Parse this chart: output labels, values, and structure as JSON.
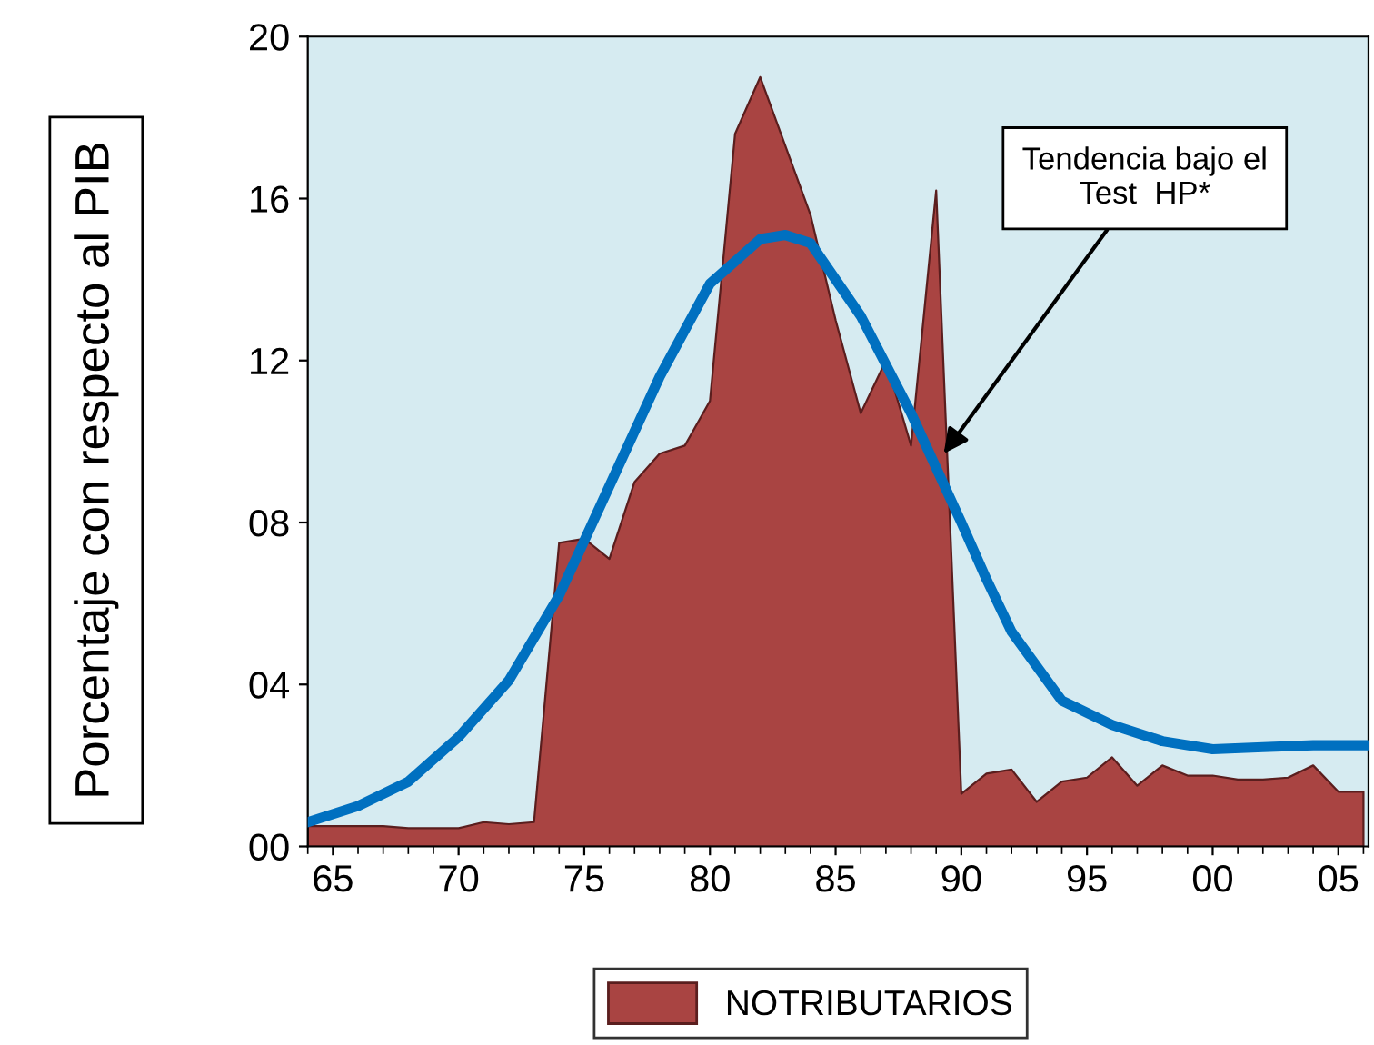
{
  "chart_data": {
    "type": "area",
    "ylabel": "Porcentaje con respecto al PIB",
    "xlim": [
      1964,
      2006.2
    ],
    "ylim": [
      0,
      20
    ],
    "xticks": [
      {
        "value": 1965,
        "label": "65"
      },
      {
        "value": 1970,
        "label": "70"
      },
      {
        "value": 1975,
        "label": "75"
      },
      {
        "value": 1980,
        "label": "80"
      },
      {
        "value": 1985,
        "label": "85"
      },
      {
        "value": 1990,
        "label": "90"
      },
      {
        "value": 1995,
        "label": "95"
      },
      {
        "value": 2000,
        "label": "00"
      },
      {
        "value": 2005,
        "label": "05"
      }
    ],
    "yticks": [
      {
        "value": 0,
        "label": "00"
      },
      {
        "value": 4,
        "label": "04"
      },
      {
        "value": 8,
        "label": "08"
      },
      {
        "value": 12,
        "label": "12"
      },
      16,
      20
    ],
    "series": [
      {
        "name": "NOTRIBUTARIOS",
        "color": "#a94442",
        "x": [
          1964,
          1965,
          1966,
          1967,
          1968,
          1969,
          1970,
          1971,
          1972,
          1973,
          1974,
          1975,
          1976,
          1977,
          1978,
          1979,
          1980,
          1981,
          1982,
          1983,
          1984,
          1985,
          1986,
          1987,
          1988,
          1989,
          1990,
          1991,
          1992,
          1993,
          1994,
          1995,
          1996,
          1997,
          1998,
          1999,
          2000,
          2001,
          2002,
          2003,
          2004,
          2005,
          2006
        ],
        "values": [
          0.5,
          0.5,
          0.5,
          0.5,
          0.45,
          0.45,
          0.45,
          0.6,
          0.55,
          0.6,
          7.5,
          7.6,
          7.1,
          9.0,
          9.7,
          9.9,
          11.0,
          17.6,
          19.0,
          17.3,
          15.6,
          13.0,
          10.7,
          12.0,
          9.9,
          16.2,
          1.3,
          1.8,
          1.9,
          1.1,
          1.6,
          1.7,
          2.2,
          1.5,
          2.0,
          1.75,
          1.75,
          1.65,
          1.65,
          1.7,
          2.0,
          1.35,
          1.35
        ]
      },
      {
        "type": "line",
        "color": "#0070c0",
        "x": [
          1964,
          1966,
          1968,
          1970,
          1972,
          1974,
          1976,
          1978,
          1980,
          1982,
          1983,
          1984,
          1986,
          1988,
          1990,
          1991,
          1992,
          1994,
          1996,
          1998,
          2000,
          2002,
          2004,
          2006
        ],
        "values": [
          0.6,
          1.0,
          1.6,
          2.7,
          4.1,
          6.2,
          8.9,
          11.6,
          13.9,
          15.0,
          15.1,
          14.9,
          13.1,
          10.7,
          8.0,
          6.6,
          5.3,
          3.6,
          3.0,
          2.6,
          2.4,
          2.45,
          2.5,
          2.5
        ]
      }
    ],
    "annotations": [
      {
        "text": "Tendencia bajo el\nTest  HP*",
        "x": 1989.3,
        "y": 9.7
      }
    ],
    "legend": "bottom",
    "grid": false
  }
}
